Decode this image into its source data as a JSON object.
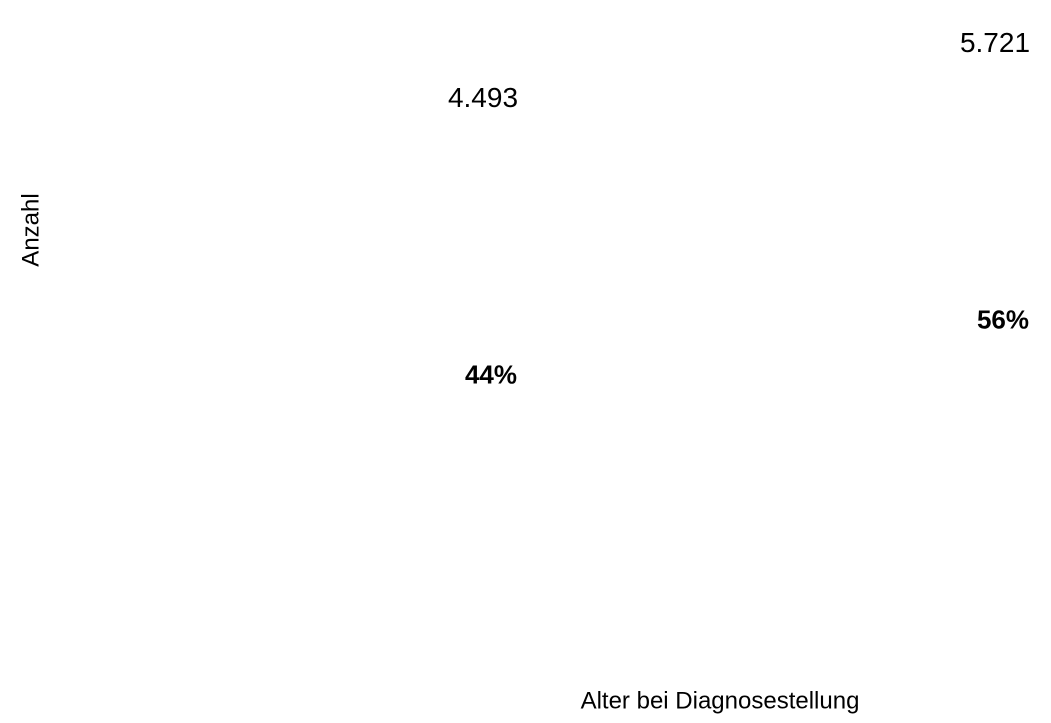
{
  "chart_data": {
    "type": "bar",
    "categories": [
      null,
      null
    ],
    "values": [
      4493,
      5721
    ],
    "value_labels": [
      "4.493",
      "5.721"
    ],
    "percent_values": [
      44,
      56
    ],
    "percent_labels": [
      "44%",
      "56%"
    ],
    "color": "#ffffff",
    "ylim": [
      0,
      6000
    ],
    "xlabel": "Alter bei Diagnosestellung",
    "ylabel": "Anzahl"
  }
}
